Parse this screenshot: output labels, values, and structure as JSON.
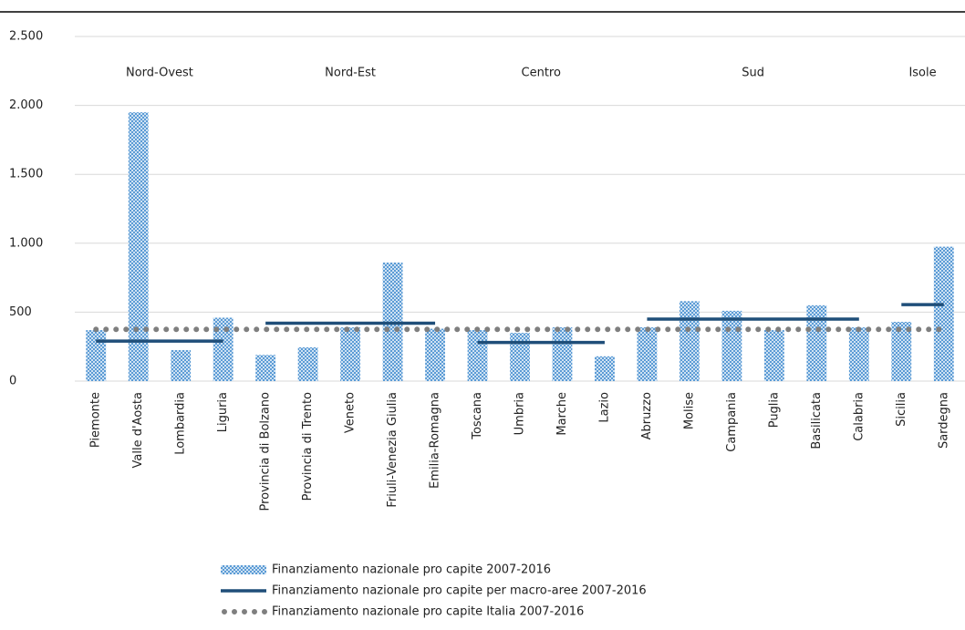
{
  "chart_data": {
    "type": "bar",
    "categories": [
      "Piemonte",
      "Valle d'Aosta",
      "Lombardia",
      "Liguria",
      "Provincia di Bolzano",
      "Provincia di Trento",
      "Veneto",
      "Friuli-Venezia Giulia",
      "Emilia-Romagna",
      "Toscana",
      "Umbria",
      "Marche",
      "Lazio",
      "Abruzzo",
      "Molise",
      "Campania",
      "Puglia",
      "Basilicata",
      "Calabria",
      "Sicilia",
      "Sardegna"
    ],
    "series": [
      {
        "name": "Finanziamento nazionale pro capite 2007-2016",
        "type": "bar",
        "color": "#5b9bd5",
        "values": [
          370,
          1950,
          225,
          460,
          190,
          245,
          390,
          860,
          380,
          370,
          350,
          390,
          180,
          390,
          580,
          510,
          370,
          550,
          390,
          430,
          975
        ]
      },
      {
        "name": "Finanziamento nazionale pro capite per macro-aree 2007-2016",
        "type": "line",
        "line_style": "solid",
        "color": "#1f4e79",
        "values": [
          290,
          290,
          290,
          290,
          420,
          420,
          420,
          420,
          420,
          280,
          280,
          280,
          280,
          450,
          450,
          450,
          450,
          450,
          450,
          555,
          555
        ],
        "groups": [
          [
            0,
            3
          ],
          [
            4,
            8
          ],
          [
            9,
            12
          ],
          [
            13,
            18
          ],
          [
            19,
            20
          ]
        ]
      },
      {
        "name": "Finanziamento nazionale pro capite Italia 2007-2016",
        "type": "line",
        "line_style": "dotted",
        "color": "#7f7f7f",
        "values": [
          375,
          375,
          375,
          375,
          375,
          375,
          375,
          375,
          375,
          375,
          375,
          375,
          375,
          375,
          375,
          375,
          375,
          375,
          375,
          375,
          375
        ]
      }
    ],
    "group_labels": [
      "Nord-Ovest",
      "Nord-Est",
      "Centro",
      "Sud",
      "Isole"
    ],
    "ylim": [
      0,
      2500
    ],
    "yticks": [
      0,
      500,
      {
        "value": 1000,
        "label": "1.000"
      },
      {
        "value": 1500,
        "label": "1.500"
      },
      {
        "value": 2000,
        "label": "2.000"
      },
      {
        "value": 2500,
        "label": "2.500"
      }
    ],
    "grid": true
  }
}
